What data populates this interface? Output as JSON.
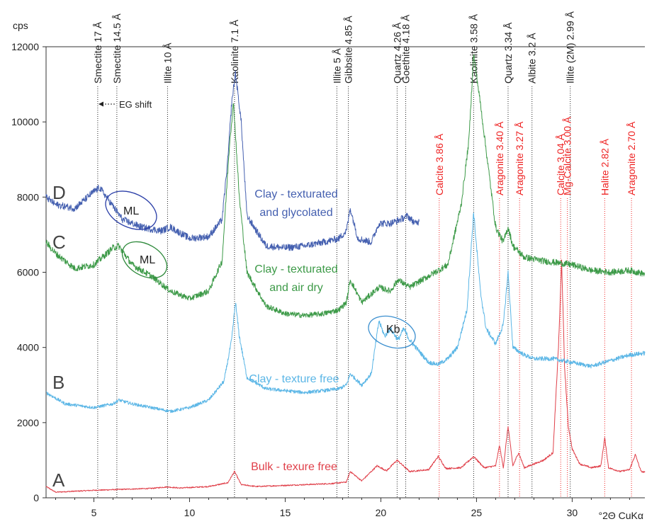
{
  "chart_data": {
    "type": "line",
    "title": "",
    "ylabel": "cps",
    "xlabel": "°2Θ CuKα",
    "xlim": [
      2.5,
      33.8
    ],
    "ylim": [
      0,
      12000
    ],
    "x_ticks": [
      5,
      10,
      15,
      20,
      25,
      30
    ],
    "y_ticks": [
      0,
      2000,
      4000,
      6000,
      8000,
      10000,
      12000
    ],
    "colors": {
      "A": "#e0404a",
      "B": "#5bb6e6",
      "C": "#3d9a48",
      "D": "#4560b0",
      "clay_ref": "#222222",
      "carbonate_ref": "#ee2222"
    },
    "series": [
      {
        "id": "A",
        "letter": "A",
        "name": "Bulk - texure free",
        "color": "#e0404a",
        "x": [
          2.5,
          3.0,
          5.0,
          8.0,
          8.8,
          9.5,
          11.0,
          12.0,
          12.35,
          12.7,
          13.5,
          15.0,
          17.5,
          18.2,
          18.4,
          19.0,
          19.8,
          20.3,
          20.85,
          21.5,
          22.5,
          23.0,
          23.4,
          24.2,
          24.85,
          25.4,
          26.0,
          26.2,
          26.4,
          26.65,
          26.9,
          27.2,
          27.5,
          28.0,
          28.5,
          29.0,
          29.3,
          29.45,
          29.6,
          29.8,
          30.0,
          30.4,
          31.0,
          31.5,
          31.7,
          31.9,
          32.5,
          33.0,
          33.3,
          33.6,
          33.8
        ],
        "y": [
          300,
          150,
          200,
          250,
          290,
          260,
          300,
          400,
          700,
          350,
          300,
          330,
          380,
          420,
          700,
          450,
          850,
          720,
          1000,
          700,
          750,
          1100,
          780,
          800,
          1100,
          800,
          850,
          1400,
          800,
          1900,
          850,
          1200,
          800,
          900,
          1000,
          1200,
          4200,
          6300,
          3500,
          1900,
          1300,
          900,
          800,
          850,
          1600,
          800,
          700,
          750,
          1150,
          700,
          680
        ]
      },
      {
        "id": "B",
        "letter": "B",
        "name": "Clay - texture free",
        "color": "#5bb6e6",
        "x": [
          2.5,
          3.5,
          5.0,
          6.0,
          6.3,
          7.0,
          8.0,
          9.0,
          10.0,
          11.0,
          11.8,
          12.2,
          12.4,
          12.6,
          13.0,
          14.0,
          16.0,
          17.0,
          17.8,
          18.2,
          18.4,
          19.0,
          19.5,
          19.9,
          20.2,
          20.5,
          20.9,
          21.2,
          21.5,
          22.0,
          22.5,
          23.0,
          23.5,
          24.0,
          24.5,
          24.85,
          25.2,
          25.5,
          26.0,
          26.4,
          26.65,
          26.9,
          27.5,
          28.0,
          29.0,
          30.0,
          31.0,
          32.0,
          33.0,
          33.8
        ],
        "y": [
          2800,
          2500,
          2400,
          2500,
          2600,
          2500,
          2400,
          2300,
          2400,
          2600,
          3100,
          4200,
          5200,
          4300,
          3200,
          2900,
          2800,
          2850,
          2900,
          3000,
          3300,
          3000,
          3300,
          4700,
          4300,
          4500,
          4200,
          4500,
          4200,
          3900,
          3600,
          3550,
          3700,
          4000,
          5000,
          7600,
          5500,
          4500,
          4100,
          4600,
          6000,
          4000,
          3800,
          3700,
          3700,
          3600,
          3500,
          3650,
          3800,
          3850
        ]
      },
      {
        "id": "C",
        "letter": "C",
        "name": "Clay - texturated and air dry",
        "color": "#3d9a48",
        "x": [
          2.5,
          3.0,
          4.0,
          5.0,
          6.0,
          6.3,
          7.0,
          8.0,
          9.0,
          10.0,
          11.0,
          11.7,
          12.1,
          12.3,
          12.6,
          13.0,
          14.0,
          15.0,
          16.0,
          17.0,
          17.8,
          18.2,
          18.4,
          19.0,
          19.9,
          20.5,
          20.9,
          21.5,
          22.5,
          23.5,
          24.2,
          24.6,
          24.85,
          25.2,
          26.0,
          26.4,
          26.65,
          26.9,
          27.5,
          28.5,
          30.0,
          31.0,
          32.0,
          33.0,
          33.8
        ],
        "y": [
          6800,
          6500,
          6100,
          6200,
          6650,
          6700,
          6200,
          5900,
          5500,
          5300,
          5500,
          6300,
          9500,
          10500,
          8000,
          6000,
          5100,
          4900,
          4850,
          4900,
          5000,
          5200,
          5800,
          5200,
          5600,
          5500,
          5800,
          5600,
          5900,
          6200,
          7800,
          9500,
          11800,
          10500,
          7200,
          6800,
          7200,
          6700,
          6400,
          6300,
          6200,
          6050,
          6000,
          6050,
          5950
        ]
      },
      {
        "id": "D",
        "letter": "D",
        "name": "Clay - texturated and glycolated",
        "color": "#4560b0",
        "x": [
          2.5,
          3.0,
          4.0,
          5.0,
          5.3,
          5.8,
          6.5,
          7.5,
          8.5,
          9.0,
          10.0,
          11.0,
          11.7,
          12.0,
          12.2,
          12.4,
          12.7,
          13.0,
          14.0,
          15.0,
          16.0,
          17.0,
          17.8,
          18.2,
          18.4,
          18.8,
          19.5,
          19.9,
          20.5,
          21.0,
          21.4,
          21.8,
          22.0
        ],
        "y": [
          8000,
          7800,
          7700,
          8150,
          8250,
          7900,
          7400,
          7200,
          7100,
          7200,
          6900,
          6950,
          7400,
          9000,
          10500,
          11300,
          10000,
          7500,
          6700,
          6650,
          6700,
          6800,
          6900,
          7100,
          7700,
          6900,
          6800,
          7300,
          7300,
          7400,
          7500,
          7300,
          7350
        ]
      }
    ],
    "reference_lines": [
      {
        "x": 5.2,
        "label": "Smectite 17 Å",
        "group": "clay"
      },
      {
        "x": 6.2,
        "label": "Smectite 14.5 Å",
        "group": "clay"
      },
      {
        "x": 8.85,
        "label": "Illite 10 Å",
        "group": "clay"
      },
      {
        "x": 12.35,
        "label": "Kaolinite 7.1 Å",
        "group": "clay"
      },
      {
        "x": 17.7,
        "label": "Illite 5 Å",
        "group": "clay"
      },
      {
        "x": 18.3,
        "label": "Gibbsite 4.85 Å",
        "group": "clay"
      },
      {
        "x": 20.85,
        "label": "Quartz 4.26 Å",
        "group": "clay"
      },
      {
        "x": 21.3,
        "label": "Goethite 4.18 Å",
        "group": "clay"
      },
      {
        "x": 24.85,
        "label": "Kaolinite 3.58 Å",
        "group": "clay"
      },
      {
        "x": 26.65,
        "label": "Quartz 3.34 Å",
        "group": "clay"
      },
      {
        "x": 27.9,
        "label": "Albite 3.2 Å",
        "group": "clay"
      },
      {
        "x": 29.9,
        "label": "Illite (2M) 2.99 Å",
        "group": "clay"
      },
      {
        "x": 23.05,
        "label": "Calcite 3.86 Å",
        "group": "carbonate"
      },
      {
        "x": 26.2,
        "label": "Aragonite 3.40 Å",
        "group": "carbonate"
      },
      {
        "x": 27.25,
        "label": "Aragonite 3.27 Å",
        "group": "carbonate"
      },
      {
        "x": 29.4,
        "label": "Calcite 3.04 Å",
        "group": "carbonate"
      },
      {
        "x": 29.75,
        "label": "Mg-Calcite 3.00 Å",
        "group": "carbonate"
      },
      {
        "x": 31.7,
        "label": "Halite 2.82 Å",
        "group": "carbonate"
      },
      {
        "x": 33.1,
        "label": "Aragonite 2.70 Å",
        "group": "carbonate"
      }
    ],
    "annotations": {
      "eg_shift": "EG shift",
      "ml_d": "ML",
      "ml_c": "ML",
      "kb": "Kb"
    }
  }
}
